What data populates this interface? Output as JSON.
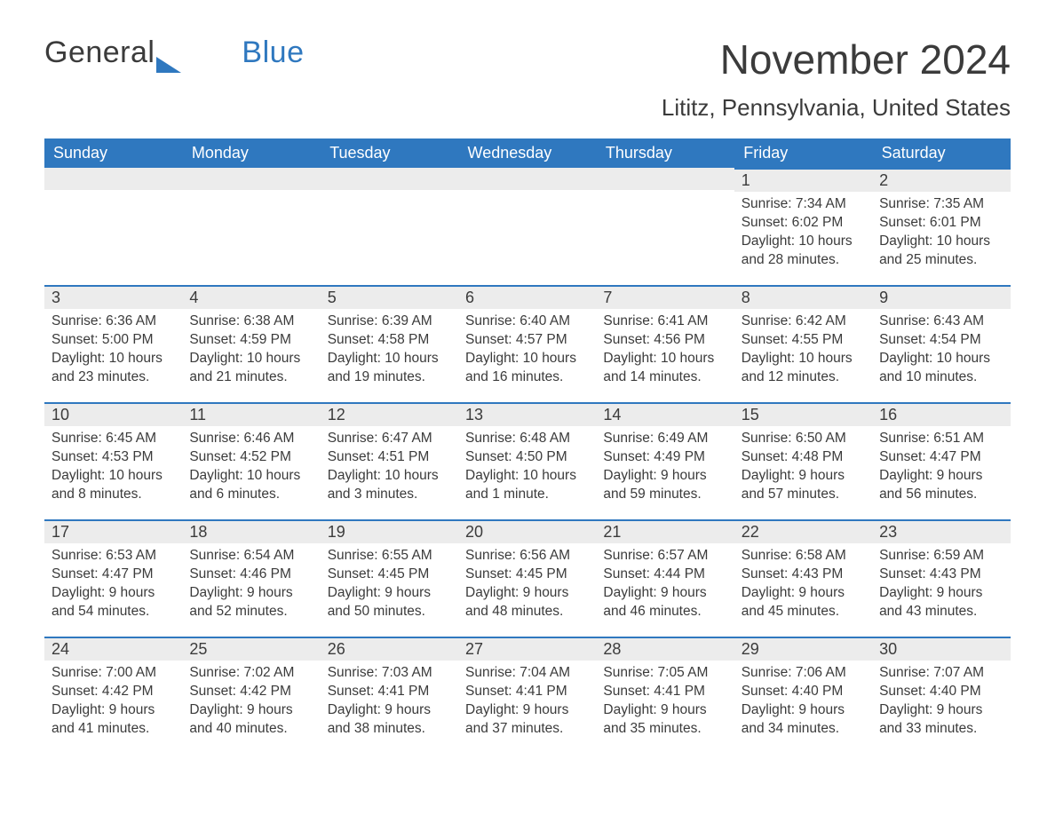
{
  "brand": {
    "word1": "General",
    "word2": "Blue"
  },
  "colors": {
    "brand_blue": "#2f78bf",
    "header_bg": "#2f78bf",
    "header_text": "#ffffff",
    "daynum_bg": "#ececec",
    "body_text": "#3b3b3b",
    "page_bg": "#ffffff",
    "cell_top_border": "#2f78bf"
  },
  "title": "November 2024",
  "location": "Lititz, Pennsylvania, United States",
  "weekday_headers": [
    "Sunday",
    "Monday",
    "Tuesday",
    "Wednesday",
    "Thursday",
    "Friday",
    "Saturday"
  ],
  "weeks": [
    [
      null,
      null,
      null,
      null,
      null,
      {
        "day": "1",
        "sunrise": "Sunrise: 7:34 AM",
        "sunset": "Sunset: 6:02 PM",
        "daylight1": "Daylight: 10 hours",
        "daylight2": "and 28 minutes."
      },
      {
        "day": "2",
        "sunrise": "Sunrise: 7:35 AM",
        "sunset": "Sunset: 6:01 PM",
        "daylight1": "Daylight: 10 hours",
        "daylight2": "and 25 minutes."
      }
    ],
    [
      {
        "day": "3",
        "sunrise": "Sunrise: 6:36 AM",
        "sunset": "Sunset: 5:00 PM",
        "daylight1": "Daylight: 10 hours",
        "daylight2": "and 23 minutes."
      },
      {
        "day": "4",
        "sunrise": "Sunrise: 6:38 AM",
        "sunset": "Sunset: 4:59 PM",
        "daylight1": "Daylight: 10 hours",
        "daylight2": "and 21 minutes."
      },
      {
        "day": "5",
        "sunrise": "Sunrise: 6:39 AM",
        "sunset": "Sunset: 4:58 PM",
        "daylight1": "Daylight: 10 hours",
        "daylight2": "and 19 minutes."
      },
      {
        "day": "6",
        "sunrise": "Sunrise: 6:40 AM",
        "sunset": "Sunset: 4:57 PM",
        "daylight1": "Daylight: 10 hours",
        "daylight2": "and 16 minutes."
      },
      {
        "day": "7",
        "sunrise": "Sunrise: 6:41 AM",
        "sunset": "Sunset: 4:56 PM",
        "daylight1": "Daylight: 10 hours",
        "daylight2": "and 14 minutes."
      },
      {
        "day": "8",
        "sunrise": "Sunrise: 6:42 AM",
        "sunset": "Sunset: 4:55 PM",
        "daylight1": "Daylight: 10 hours",
        "daylight2": "and 12 minutes."
      },
      {
        "day": "9",
        "sunrise": "Sunrise: 6:43 AM",
        "sunset": "Sunset: 4:54 PM",
        "daylight1": "Daylight: 10 hours",
        "daylight2": "and 10 minutes."
      }
    ],
    [
      {
        "day": "10",
        "sunrise": "Sunrise: 6:45 AM",
        "sunset": "Sunset: 4:53 PM",
        "daylight1": "Daylight: 10 hours",
        "daylight2": "and 8 minutes."
      },
      {
        "day": "11",
        "sunrise": "Sunrise: 6:46 AM",
        "sunset": "Sunset: 4:52 PM",
        "daylight1": "Daylight: 10 hours",
        "daylight2": "and 6 minutes."
      },
      {
        "day": "12",
        "sunrise": "Sunrise: 6:47 AM",
        "sunset": "Sunset: 4:51 PM",
        "daylight1": "Daylight: 10 hours",
        "daylight2": "and 3 minutes."
      },
      {
        "day": "13",
        "sunrise": "Sunrise: 6:48 AM",
        "sunset": "Sunset: 4:50 PM",
        "daylight1": "Daylight: 10 hours",
        "daylight2": "and 1 minute."
      },
      {
        "day": "14",
        "sunrise": "Sunrise: 6:49 AM",
        "sunset": "Sunset: 4:49 PM",
        "daylight1": "Daylight: 9 hours",
        "daylight2": "and 59 minutes."
      },
      {
        "day": "15",
        "sunrise": "Sunrise: 6:50 AM",
        "sunset": "Sunset: 4:48 PM",
        "daylight1": "Daylight: 9 hours",
        "daylight2": "and 57 minutes."
      },
      {
        "day": "16",
        "sunrise": "Sunrise: 6:51 AM",
        "sunset": "Sunset: 4:47 PM",
        "daylight1": "Daylight: 9 hours",
        "daylight2": "and 56 minutes."
      }
    ],
    [
      {
        "day": "17",
        "sunrise": "Sunrise: 6:53 AM",
        "sunset": "Sunset: 4:47 PM",
        "daylight1": "Daylight: 9 hours",
        "daylight2": "and 54 minutes."
      },
      {
        "day": "18",
        "sunrise": "Sunrise: 6:54 AM",
        "sunset": "Sunset: 4:46 PM",
        "daylight1": "Daylight: 9 hours",
        "daylight2": "and 52 minutes."
      },
      {
        "day": "19",
        "sunrise": "Sunrise: 6:55 AM",
        "sunset": "Sunset: 4:45 PM",
        "daylight1": "Daylight: 9 hours",
        "daylight2": "and 50 minutes."
      },
      {
        "day": "20",
        "sunrise": "Sunrise: 6:56 AM",
        "sunset": "Sunset: 4:45 PM",
        "daylight1": "Daylight: 9 hours",
        "daylight2": "and 48 minutes."
      },
      {
        "day": "21",
        "sunrise": "Sunrise: 6:57 AM",
        "sunset": "Sunset: 4:44 PM",
        "daylight1": "Daylight: 9 hours",
        "daylight2": "and 46 minutes."
      },
      {
        "day": "22",
        "sunrise": "Sunrise: 6:58 AM",
        "sunset": "Sunset: 4:43 PM",
        "daylight1": "Daylight: 9 hours",
        "daylight2": "and 45 minutes."
      },
      {
        "day": "23",
        "sunrise": "Sunrise: 6:59 AM",
        "sunset": "Sunset: 4:43 PM",
        "daylight1": "Daylight: 9 hours",
        "daylight2": "and 43 minutes."
      }
    ],
    [
      {
        "day": "24",
        "sunrise": "Sunrise: 7:00 AM",
        "sunset": "Sunset: 4:42 PM",
        "daylight1": "Daylight: 9 hours",
        "daylight2": "and 41 minutes."
      },
      {
        "day": "25",
        "sunrise": "Sunrise: 7:02 AM",
        "sunset": "Sunset: 4:42 PM",
        "daylight1": "Daylight: 9 hours",
        "daylight2": "and 40 minutes."
      },
      {
        "day": "26",
        "sunrise": "Sunrise: 7:03 AM",
        "sunset": "Sunset: 4:41 PM",
        "daylight1": "Daylight: 9 hours",
        "daylight2": "and 38 minutes."
      },
      {
        "day": "27",
        "sunrise": "Sunrise: 7:04 AM",
        "sunset": "Sunset: 4:41 PM",
        "daylight1": "Daylight: 9 hours",
        "daylight2": "and 37 minutes."
      },
      {
        "day": "28",
        "sunrise": "Sunrise: 7:05 AM",
        "sunset": "Sunset: 4:41 PM",
        "daylight1": "Daylight: 9 hours",
        "daylight2": "and 35 minutes."
      },
      {
        "day": "29",
        "sunrise": "Sunrise: 7:06 AM",
        "sunset": "Sunset: 4:40 PM",
        "daylight1": "Daylight: 9 hours",
        "daylight2": "and 34 minutes."
      },
      {
        "day": "30",
        "sunrise": "Sunrise: 7:07 AM",
        "sunset": "Sunset: 4:40 PM",
        "daylight1": "Daylight: 9 hours",
        "daylight2": "and 33 minutes."
      }
    ]
  ]
}
